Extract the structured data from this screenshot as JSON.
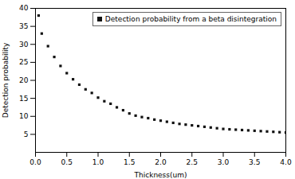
{
  "chart_data": {
    "type": "scatter",
    "title": "",
    "xlabel": "Thickness(um)",
    "ylabel": "Detection probability",
    "xlim": [
      0.0,
      4.0
    ],
    "ylim": [
      0,
      40
    ],
    "xticks": [
      {
        "value": 0.0,
        "label": "0.0"
      },
      0.5,
      {
        "value": 1.0,
        "label": "1.0"
      },
      1.5,
      {
        "value": 2.0,
        "label": "2.0"
      },
      2.5,
      {
        "value": 3.0,
        "label": "3.0"
      },
      3.5,
      {
        "value": 4.0,
        "label": "4.0"
      }
    ],
    "yticks": [
      5,
      10,
      15,
      20,
      25,
      30,
      35,
      40
    ],
    "legend": "upper right",
    "marker": "square",
    "series": [
      {
        "name": "Detection probability from a beta disintegration",
        "color": "#111111",
        "x": [
          0.05,
          0.1,
          0.2,
          0.3,
          0.4,
          0.5,
          0.6,
          0.7,
          0.8,
          0.9,
          1.0,
          1.1,
          1.2,
          1.3,
          1.4,
          1.5,
          1.6,
          1.7,
          1.8,
          1.9,
          2.0,
          2.1,
          2.2,
          2.3,
          2.4,
          2.5,
          2.6,
          2.7,
          2.8,
          2.9,
          3.0,
          3.1,
          3.2,
          3.3,
          3.4,
          3.5,
          3.6,
          3.7,
          3.8,
          3.9,
          4.0
        ],
        "values": [
          38.0,
          33.0,
          29.5,
          26.5,
          24.0,
          22.0,
          20.3,
          18.8,
          17.5,
          16.5,
          15.2,
          14.2,
          13.5,
          12.5,
          11.7,
          10.8,
          10.2,
          9.8,
          9.5,
          9.1,
          8.8,
          8.5,
          8.2,
          7.9,
          7.7,
          7.5,
          7.3,
          7.1,
          6.9,
          6.7,
          6.5,
          6.4,
          6.3,
          6.2,
          6.1,
          6.0,
          5.9,
          5.8,
          5.7,
          5.6,
          5.5
        ]
      }
    ]
  }
}
